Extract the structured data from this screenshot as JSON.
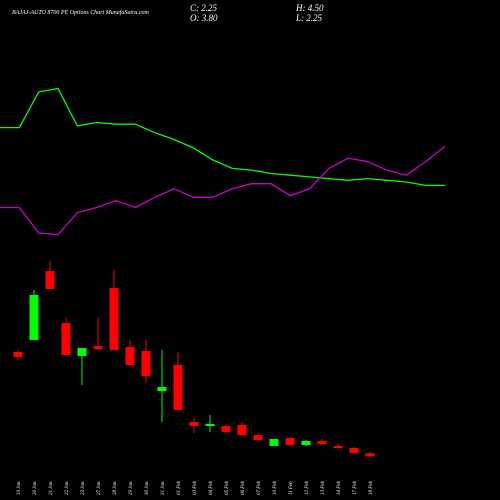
{
  "chart_data": [
    {
      "type": "candlestick",
      "title": "BAJAJ-AUTO 8700 PE Options Chart MunafaSutra.com",
      "annotations": [
        "C: 2.25",
        "H: 4.50",
        "O: 3.80",
        "L: 2.25"
      ],
      "categories": [
        "19 Jan",
        "20 Jan",
        "21 Jan",
        "22 Jan",
        "23 Jan",
        "27 Jan",
        "28 Jan",
        "29 Jan",
        "30 Jan",
        "31 Jan",
        "01 Feb",
        "03 Feb",
        "04 Feb",
        "05 Feb",
        "06 Feb",
        "07 Feb",
        "10 Feb",
        "11 Feb",
        "12 Feb",
        "13 Feb",
        "14 Feb",
        "17 Feb",
        "18 Feb"
      ],
      "open": [
        54.5,
        60.5,
        95,
        69,
        52.5,
        57.5,
        86.5,
        57,
        55,
        35,
        48,
        19.5,
        17.5,
        17.5,
        18,
        13,
        7.5,
        11.5,
        8,
        10,
        7.5,
        6.5,
        3.8
      ],
      "high": [
        55.5,
        85.5,
        100,
        71.5,
        56.5,
        71.5,
        95.5,
        60.5,
        60.5,
        55.5,
        54.5,
        21.5,
        23,
        18.5,
        19.5,
        14,
        11,
        12,
        10.5,
        11,
        8.5,
        7,
        4.5
      ],
      "low": [
        50.5,
        60.5,
        86,
        53,
        38,
        55.5,
        55.5,
        47,
        39,
        19.5,
        25.5,
        14,
        14.5,
        14,
        13,
        10.5,
        7.5,
        7.5,
        7.5,
        8,
        6,
        3.5,
        2.25
      ],
      "close": [
        52,
        83,
        86,
        53,
        56.5,
        56,
        55.5,
        48,
        42.5,
        37,
        25.5,
        17.5,
        18.5,
        14.5,
        13,
        10.5,
        11,
        8,
        10,
        8.5,
        6.5,
        4,
        2.25
      ],
      "up_color": "#00ff00",
      "down_color": "#ff0000",
      "ylim": [
        0,
        100
      ]
    },
    {
      "type": "line",
      "series": [
        {
          "color": "#00ff00",
          "values": [
            72,
            72,
            93,
            95,
            73,
            75,
            74,
            74,
            69,
            65,
            60,
            53,
            48,
            47,
            45,
            44,
            43,
            42,
            41,
            42,
            41,
            40,
            38,
            38
          ]
        },
        {
          "color": "#cc00cc",
          "values": [
            25,
            25,
            10,
            9,
            22,
            25,
            29,
            25,
            31,
            36,
            31,
            31,
            36,
            39,
            39,
            32,
            36,
            48,
            54,
            52,
            47,
            44,
            52,
            61
          ]
        }
      ],
      "ylim": [
        0,
        100
      ]
    }
  ]
}
